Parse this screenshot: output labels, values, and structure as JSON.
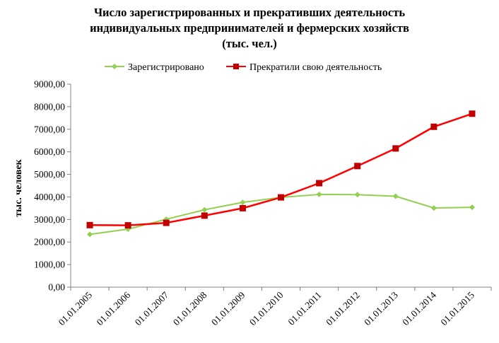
{
  "chart_data": {
    "type": "line",
    "title_lines": [
      "Число зарегистрированных  и прекративших деятельность",
      "индивидуальных предпринимателей и фермерских хозяйств",
      "(тыс. чел.)"
    ],
    "xlabel": "",
    "ylabel": "тыс. человек",
    "categories": [
      "01.01.2005",
      "01.01.2006",
      "01.01.2007",
      "01.01.2008",
      "01.01.2009",
      "01.01.2010",
      "01.01.2011",
      "01.01.2012",
      "01.01.2013",
      "01.01.2014",
      "01.01.2015"
    ],
    "ylim": [
      0,
      9000
    ],
    "yticks": [
      0,
      1000,
      2000,
      3000,
      4000,
      5000,
      6000,
      7000,
      8000,
      9000
    ],
    "ytick_labels": [
      "0,00",
      "1000,00",
      "2000,00",
      "3000,00",
      "4000,00",
      "5000,00",
      "6000,00",
      "7000,00",
      "8000,00",
      "9000,00"
    ],
    "grid": false,
    "legend_position": "top",
    "series": [
      {
        "name": "Зарегистрировано",
        "color": "#92D050",
        "marker": "diamond",
        "values": [
          2340,
          2570,
          3010,
          3430,
          3760,
          3980,
          4110,
          4100,
          4030,
          3510,
          3540
        ]
      },
      {
        "name": "Прекратили свою деятельность",
        "color": "#FF0000",
        "marker": "square",
        "values": [
          2750,
          2740,
          2850,
          3170,
          3500,
          3980,
          4610,
          5370,
          6150,
          7110,
          7690
        ]
      }
    ]
  }
}
